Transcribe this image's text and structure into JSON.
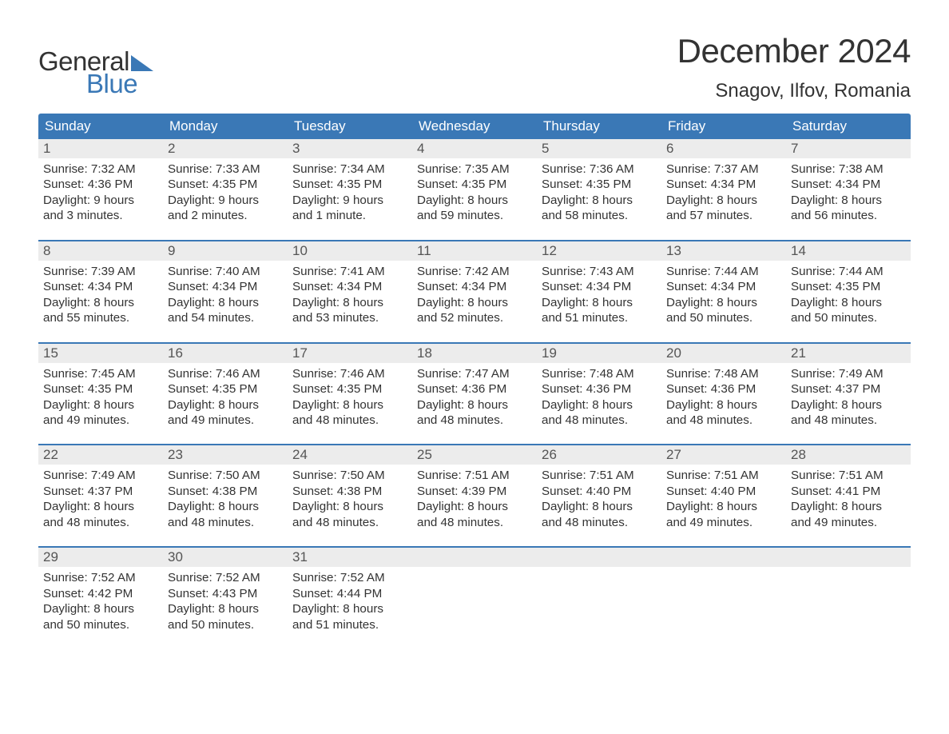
{
  "brand": {
    "word1": "General",
    "word2": "Blue",
    "text_color_dark": "#333333",
    "text_color_accent": "#3a78b6",
    "triangle_color": "#3a78b6"
  },
  "title": {
    "month_year": "December 2024",
    "location": "Snagov, Ilfov, Romania",
    "title_fontsize": 42,
    "location_fontsize": 24
  },
  "colors": {
    "header_bg": "#3a78b6",
    "header_text": "#ffffff",
    "daynum_bg": "#ececec",
    "daynum_text": "#555555",
    "body_text": "#333333",
    "week_divider": "#3a78b6",
    "page_bg": "#ffffff"
  },
  "weekday_labels": [
    "Sunday",
    "Monday",
    "Tuesday",
    "Wednesday",
    "Thursday",
    "Friday",
    "Saturday"
  ],
  "weeks": [
    [
      {
        "n": "1",
        "l1": "Sunrise: 7:32 AM",
        "l2": "Sunset: 4:36 PM",
        "l3": "Daylight: 9 hours",
        "l4": "and 3 minutes."
      },
      {
        "n": "2",
        "l1": "Sunrise: 7:33 AM",
        "l2": "Sunset: 4:35 PM",
        "l3": "Daylight: 9 hours",
        "l4": "and 2 minutes."
      },
      {
        "n": "3",
        "l1": "Sunrise: 7:34 AM",
        "l2": "Sunset: 4:35 PM",
        "l3": "Daylight: 9 hours",
        "l4": "and 1 minute."
      },
      {
        "n": "4",
        "l1": "Sunrise: 7:35 AM",
        "l2": "Sunset: 4:35 PM",
        "l3": "Daylight: 8 hours",
        "l4": "and 59 minutes."
      },
      {
        "n": "5",
        "l1": "Sunrise: 7:36 AM",
        "l2": "Sunset: 4:35 PM",
        "l3": "Daylight: 8 hours",
        "l4": "and 58 minutes."
      },
      {
        "n": "6",
        "l1": "Sunrise: 7:37 AM",
        "l2": "Sunset: 4:34 PM",
        "l3": "Daylight: 8 hours",
        "l4": "and 57 minutes."
      },
      {
        "n": "7",
        "l1": "Sunrise: 7:38 AM",
        "l2": "Sunset: 4:34 PM",
        "l3": "Daylight: 8 hours",
        "l4": "and 56 minutes."
      }
    ],
    [
      {
        "n": "8",
        "l1": "Sunrise: 7:39 AM",
        "l2": "Sunset: 4:34 PM",
        "l3": "Daylight: 8 hours",
        "l4": "and 55 minutes."
      },
      {
        "n": "9",
        "l1": "Sunrise: 7:40 AM",
        "l2": "Sunset: 4:34 PM",
        "l3": "Daylight: 8 hours",
        "l4": "and 54 minutes."
      },
      {
        "n": "10",
        "l1": "Sunrise: 7:41 AM",
        "l2": "Sunset: 4:34 PM",
        "l3": "Daylight: 8 hours",
        "l4": "and 53 minutes."
      },
      {
        "n": "11",
        "l1": "Sunrise: 7:42 AM",
        "l2": "Sunset: 4:34 PM",
        "l3": "Daylight: 8 hours",
        "l4": "and 52 minutes."
      },
      {
        "n": "12",
        "l1": "Sunrise: 7:43 AM",
        "l2": "Sunset: 4:34 PM",
        "l3": "Daylight: 8 hours",
        "l4": "and 51 minutes."
      },
      {
        "n": "13",
        "l1": "Sunrise: 7:44 AM",
        "l2": "Sunset: 4:34 PM",
        "l3": "Daylight: 8 hours",
        "l4": "and 50 minutes."
      },
      {
        "n": "14",
        "l1": "Sunrise: 7:44 AM",
        "l2": "Sunset: 4:35 PM",
        "l3": "Daylight: 8 hours",
        "l4": "and 50 minutes."
      }
    ],
    [
      {
        "n": "15",
        "l1": "Sunrise: 7:45 AM",
        "l2": "Sunset: 4:35 PM",
        "l3": "Daylight: 8 hours",
        "l4": "and 49 minutes."
      },
      {
        "n": "16",
        "l1": "Sunrise: 7:46 AM",
        "l2": "Sunset: 4:35 PM",
        "l3": "Daylight: 8 hours",
        "l4": "and 49 minutes."
      },
      {
        "n": "17",
        "l1": "Sunrise: 7:46 AM",
        "l2": "Sunset: 4:35 PM",
        "l3": "Daylight: 8 hours",
        "l4": "and 48 minutes."
      },
      {
        "n": "18",
        "l1": "Sunrise: 7:47 AM",
        "l2": "Sunset: 4:36 PM",
        "l3": "Daylight: 8 hours",
        "l4": "and 48 minutes."
      },
      {
        "n": "19",
        "l1": "Sunrise: 7:48 AM",
        "l2": "Sunset: 4:36 PM",
        "l3": "Daylight: 8 hours",
        "l4": "and 48 minutes."
      },
      {
        "n": "20",
        "l1": "Sunrise: 7:48 AM",
        "l2": "Sunset: 4:36 PM",
        "l3": "Daylight: 8 hours",
        "l4": "and 48 minutes."
      },
      {
        "n": "21",
        "l1": "Sunrise: 7:49 AM",
        "l2": "Sunset: 4:37 PM",
        "l3": "Daylight: 8 hours",
        "l4": "and 48 minutes."
      }
    ],
    [
      {
        "n": "22",
        "l1": "Sunrise: 7:49 AM",
        "l2": "Sunset: 4:37 PM",
        "l3": "Daylight: 8 hours",
        "l4": "and 48 minutes."
      },
      {
        "n": "23",
        "l1": "Sunrise: 7:50 AM",
        "l2": "Sunset: 4:38 PM",
        "l3": "Daylight: 8 hours",
        "l4": "and 48 minutes."
      },
      {
        "n": "24",
        "l1": "Sunrise: 7:50 AM",
        "l2": "Sunset: 4:38 PM",
        "l3": "Daylight: 8 hours",
        "l4": "and 48 minutes."
      },
      {
        "n": "25",
        "l1": "Sunrise: 7:51 AM",
        "l2": "Sunset: 4:39 PM",
        "l3": "Daylight: 8 hours",
        "l4": "and 48 minutes."
      },
      {
        "n": "26",
        "l1": "Sunrise: 7:51 AM",
        "l2": "Sunset: 4:40 PM",
        "l3": "Daylight: 8 hours",
        "l4": "and 48 minutes."
      },
      {
        "n": "27",
        "l1": "Sunrise: 7:51 AM",
        "l2": "Sunset: 4:40 PM",
        "l3": "Daylight: 8 hours",
        "l4": "and 49 minutes."
      },
      {
        "n": "28",
        "l1": "Sunrise: 7:51 AM",
        "l2": "Sunset: 4:41 PM",
        "l3": "Daylight: 8 hours",
        "l4": "and 49 minutes."
      }
    ],
    [
      {
        "n": "29",
        "l1": "Sunrise: 7:52 AM",
        "l2": "Sunset: 4:42 PM",
        "l3": "Daylight: 8 hours",
        "l4": "and 50 minutes."
      },
      {
        "n": "30",
        "l1": "Sunrise: 7:52 AM",
        "l2": "Sunset: 4:43 PM",
        "l3": "Daylight: 8 hours",
        "l4": "and 50 minutes."
      },
      {
        "n": "31",
        "l1": "Sunrise: 7:52 AM",
        "l2": "Sunset: 4:44 PM",
        "l3": "Daylight: 8 hours",
        "l4": "and 51 minutes."
      },
      {
        "n": "",
        "l1": "",
        "l2": "",
        "l3": "",
        "l4": ""
      },
      {
        "n": "",
        "l1": "",
        "l2": "",
        "l3": "",
        "l4": ""
      },
      {
        "n": "",
        "l1": "",
        "l2": "",
        "l3": "",
        "l4": ""
      },
      {
        "n": "",
        "l1": "",
        "l2": "",
        "l3": "",
        "l4": ""
      }
    ]
  ]
}
